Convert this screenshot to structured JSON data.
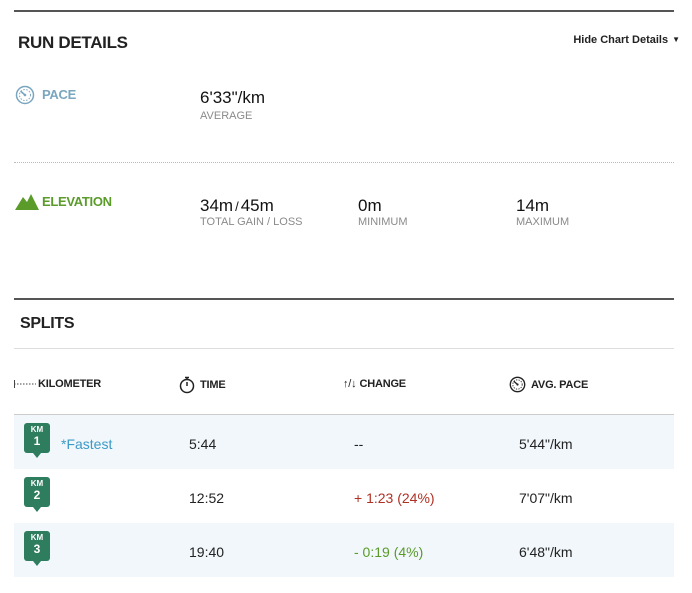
{
  "run_details": {
    "title": "RUN DETAILS",
    "hide_chart_details": "Hide Chart Details"
  },
  "pace": {
    "label": "PACE",
    "value": "6'33\"/km",
    "sub": "AVERAGE",
    "color": "#7aa6bf"
  },
  "elevation": {
    "label": "ELEVATION",
    "gain": "34m",
    "slash": "/",
    "loss": "45m",
    "gain_loss_sub": "TOTAL GAIN / LOSS",
    "minimum": "0m",
    "minimum_sub": "MINIMUM",
    "maximum": "14m",
    "maximum_sub": "MAXIMUM",
    "color": "#5a9b2a"
  },
  "splits": {
    "title": "SPLITS",
    "headers": {
      "kilometer": "KILOMETER",
      "time": "TIME",
      "change_arrows": "↑/↓",
      "change": "CHANGE",
      "avg_pace": "AVG. PACE"
    },
    "rows": [
      {
        "km_label": "KM",
        "km": "1",
        "note": "*Fastest",
        "time": "5:44",
        "change": "--",
        "change_type": "neutral",
        "pace": "5'44\"/km"
      },
      {
        "km_label": "KM",
        "km": "2",
        "note": "",
        "time": "12:52",
        "change": "+ 1:23 (24%)",
        "change_type": "slower",
        "pace": "7'07\"/km"
      },
      {
        "km_label": "KM",
        "km": "3",
        "note": "",
        "time": "19:40",
        "change": "- 0:19 (4%)",
        "change_type": "faster",
        "pace": "6'48\"/km"
      }
    ]
  }
}
